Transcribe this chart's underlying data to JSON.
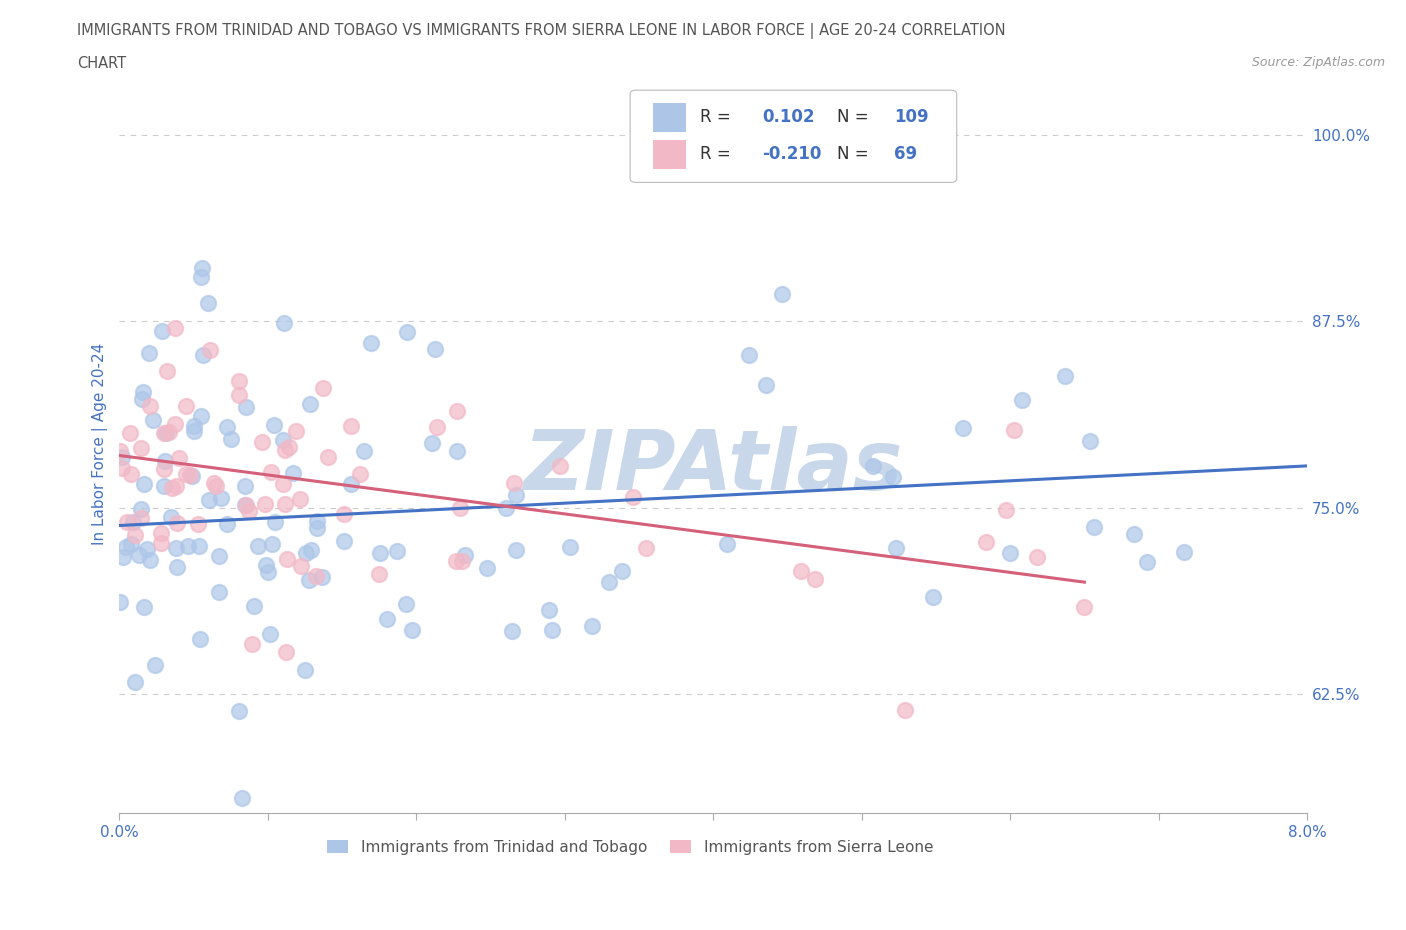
{
  "title_line1": "IMMIGRANTS FROM TRINIDAD AND TOBAGO VS IMMIGRANTS FROM SIERRA LEONE IN LABOR FORCE | AGE 20-24 CORRELATION",
  "title_line2": "CHART",
  "source": "Source: ZipAtlas.com",
  "ylabel": "In Labor Force | Age 20-24",
  "xlim": [
    0.0,
    0.08
  ],
  "ylim": [
    0.545,
    1.04
  ],
  "xticks": [
    0.0,
    0.01,
    0.02,
    0.03,
    0.04,
    0.05,
    0.06,
    0.07,
    0.08
  ],
  "xticklabels": [
    "0.0%",
    "",
    "",
    "",
    "",
    "",
    "",
    "",
    "8.0%"
  ],
  "yticks": [
    0.625,
    0.75,
    0.875,
    1.0
  ],
  "yticklabels": [
    "62.5%",
    "75.0%",
    "87.5%",
    "100.0%"
  ],
  "series1_name": "Immigrants from Trinidad and Tobago",
  "series1_color": "#adc6e8",
  "series1_line_color": "#4472c4",
  "series1_R": 0.102,
  "series1_N": 109,
  "series2_name": "Immigrants from Sierra Leone",
  "series2_color": "#f2b8c6",
  "series2_line_color": "#d4607a",
  "series2_R": -0.21,
  "series2_N": 69,
  "legend_R_color": "#4472c4",
  "background_color": "#ffffff",
  "watermark_text": "ZIPAtlas",
  "watermark_color": "#c8d8ea",
  "grid_color": "#cccccc",
  "title_color": "#555555",
  "axis_label_color": "#4472c4",
  "tick_color": "#4472c4",
  "trend1_x0": 0.0,
  "trend1_y0": 0.738,
  "trend1_x1": 0.08,
  "trend1_y1": 0.778,
  "trend2_x0": 0.0,
  "trend2_y0": 0.785,
  "trend2_x1": 0.065,
  "trend2_y1": 0.7
}
